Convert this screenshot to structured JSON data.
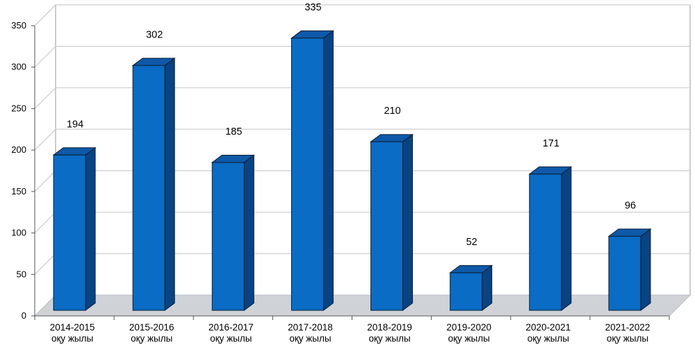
{
  "chart_data": {
    "type": "bar",
    "style": "3d-column",
    "categories": [
      [
        "2014-2015",
        "оқу жылы"
      ],
      [
        "2015-2016",
        "оқу жылы"
      ],
      [
        "2016-2017",
        "оқу жылы"
      ],
      [
        "2017-2018",
        "оқу жылы"
      ],
      [
        "2018-2019",
        "оқу жылы"
      ],
      [
        "2019-2020",
        "оқу жылы"
      ],
      [
        "2020-2021",
        "оқу жылы"
      ],
      [
        "2021-2022",
        "оқу жылы"
      ]
    ],
    "values": [
      194,
      302,
      185,
      335,
      210,
      52,
      171,
      96
    ],
    "data_labels": [
      "194",
      "302",
      "185",
      "335",
      "210",
      "52",
      "171",
      "96"
    ],
    "yticks": [
      "0",
      "50",
      "100",
      "150",
      "200",
      "250",
      "300",
      "350"
    ],
    "ylim": [
      0,
      350
    ],
    "grid": true,
    "legend": "none",
    "colors": {
      "bar_front": "#0A6CC4",
      "bar_side": "#084383",
      "bar_top": "#0E59A8",
      "outline": "#0B1D33",
      "floor": "#CFD3D8",
      "grid": "#CDCDCD"
    }
  }
}
